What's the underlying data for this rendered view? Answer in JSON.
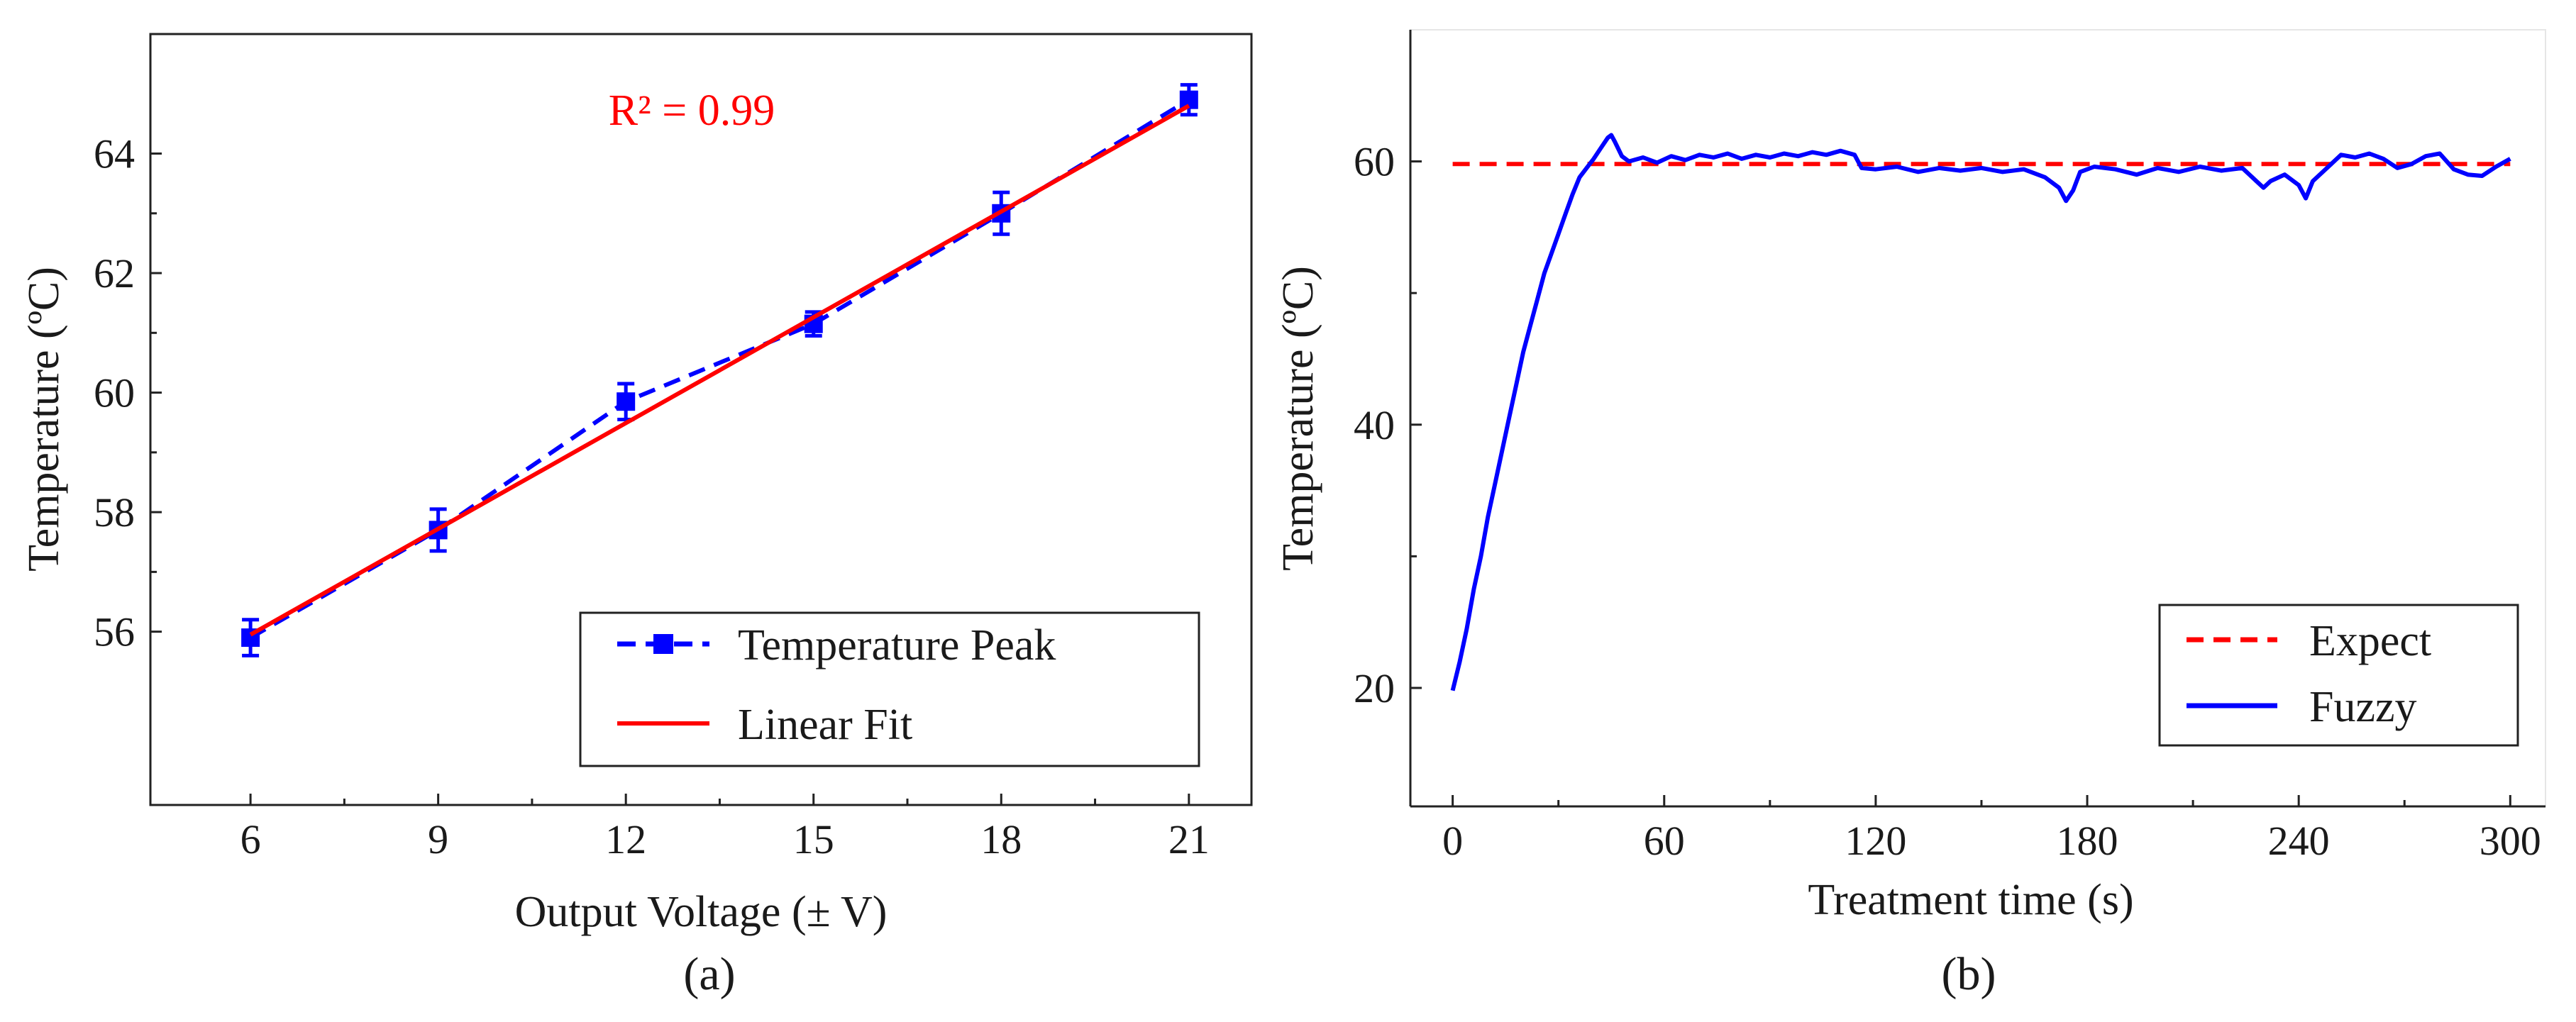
{
  "chart_data": [
    {
      "type": "line",
      "caption": "(a)",
      "xlabel": "Output Voltage (±  V)",
      "ylabel": "Temperature (ºC)",
      "xlim": [
        4.4,
        22.0
      ],
      "ylim": [
        53.1,
        66.0
      ],
      "xticks": [
        6,
        9,
        12,
        15,
        18,
        21
      ],
      "yticks": [
        56,
        58,
        60,
        62,
        64
      ],
      "annotation": {
        "text": "R² = 0.99",
        "color": "#ff0000"
      },
      "legend_position": "bottom-right",
      "series": [
        {
          "name": "Temperature Peak",
          "style": "dashed-markers",
          "color": "#0000ff",
          "x": [
            6,
            9,
            12,
            15,
            18,
            21
          ],
          "y": [
            55.9,
            57.7,
            59.85,
            61.15,
            63.0,
            64.9
          ],
          "err": [
            0.3,
            0.35,
            0.3,
            0.2,
            0.35,
            0.25
          ]
        },
        {
          "name": "Linear Fit",
          "style": "solid",
          "color": "#ff0000",
          "x": [
            6,
            21
          ],
          "y": [
            55.95,
            64.8
          ]
        }
      ]
    },
    {
      "type": "line",
      "caption": "(b)",
      "xlabel": "Treatment time (s)",
      "ylabel": "Temperature (ºC)",
      "xlim": [
        -12,
        310
      ],
      "ylim": [
        11,
        70
      ],
      "xticks": [
        0,
        60,
        120,
        180,
        240,
        300
      ],
      "yticks": [
        20,
        40,
        60
      ],
      "legend_position": "bottom-right",
      "series": [
        {
          "name": "Expect",
          "style": "dashed",
          "color": "#ff0000",
          "x": [
            0,
            300
          ],
          "y": [
            59.8,
            59.8
          ]
        },
        {
          "name": "Fuzzy",
          "style": "solid",
          "color": "#0000ff",
          "x": [
            0,
            2,
            4,
            6,
            8,
            10,
            12,
            14,
            16,
            18,
            20,
            22,
            24,
            26,
            28,
            30,
            32,
            34,
            36,
            38,
            40,
            42,
            44,
            45,
            46,
            48,
            50,
            54,
            58,
            62,
            66,
            70,
            74,
            78,
            82,
            86,
            90,
            94,
            98,
            102,
            106,
            110,
            114,
            116,
            120,
            126,
            132,
            138,
            144,
            150,
            156,
            162,
            168,
            172,
            174,
            176,
            178,
            182,
            188,
            194,
            200,
            206,
            212,
            218,
            224,
            228,
            230,
            232,
            236,
            240,
            242,
            244,
            248,
            252,
            256,
            260,
            264,
            268,
            272,
            276,
            280,
            284,
            288,
            292,
            296,
            300
          ],
          "y": [
            19.8,
            22.0,
            24.5,
            27.5,
            30.0,
            33.0,
            35.5,
            38.0,
            40.5,
            43.0,
            45.5,
            47.5,
            49.5,
            51.5,
            53.0,
            54.5,
            56.0,
            57.5,
            58.8,
            59.5,
            60.2,
            61.0,
            61.8,
            62.0,
            61.5,
            60.4,
            60.0,
            60.3,
            59.9,
            60.4,
            60.1,
            60.5,
            60.3,
            60.6,
            60.2,
            60.5,
            60.3,
            60.6,
            60.4,
            60.7,
            60.5,
            60.8,
            60.5,
            59.5,
            59.4,
            59.6,
            59.2,
            59.5,
            59.3,
            59.5,
            59.2,
            59.4,
            58.8,
            58.0,
            57.0,
            57.8,
            59.2,
            59.6,
            59.4,
            59.0,
            59.5,
            59.2,
            59.6,
            59.3,
            59.5,
            58.5,
            58.0,
            58.5,
            59.0,
            58.2,
            57.2,
            58.5,
            59.5,
            60.5,
            60.3,
            60.6,
            60.2,
            59.5,
            59.8,
            60.4,
            60.6,
            59.4,
            59.0,
            58.9,
            59.6,
            60.2
          ]
        }
      ]
    }
  ]
}
